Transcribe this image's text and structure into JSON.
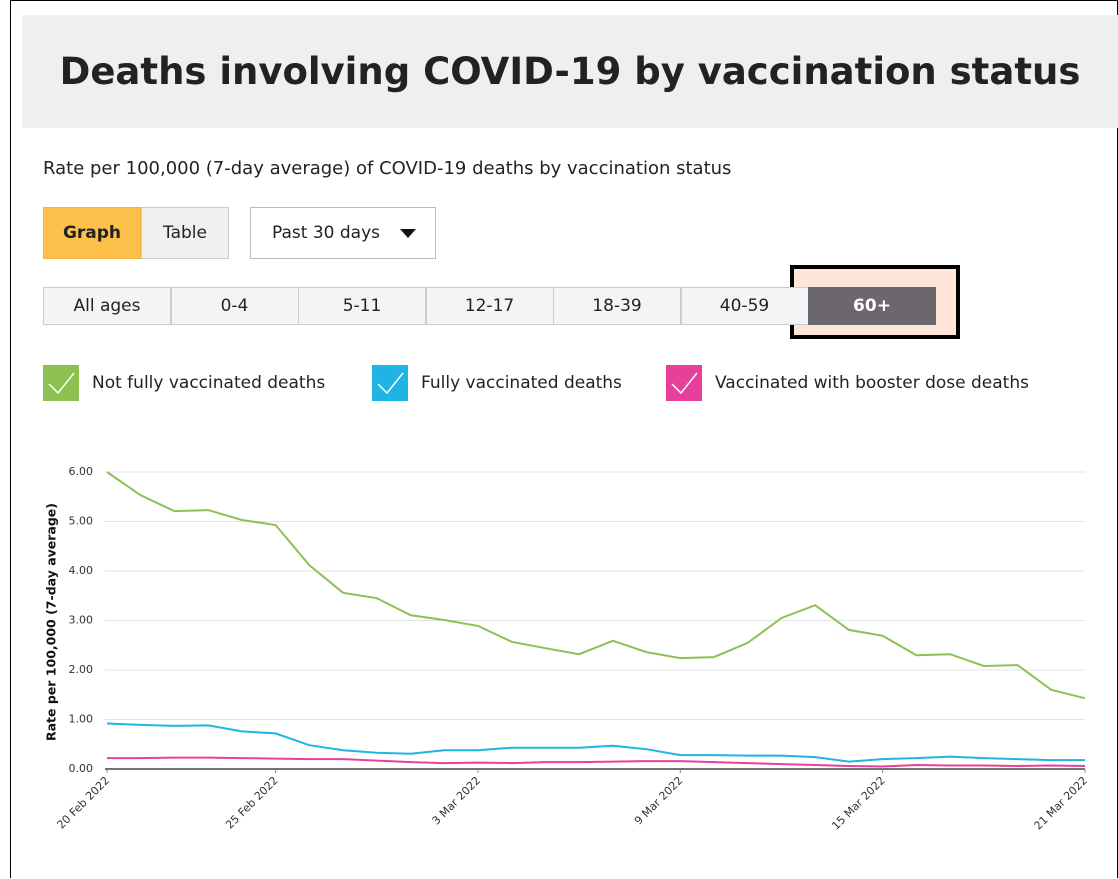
{
  "header": {
    "title": "Deaths involving COVID-19 by vaccination status"
  },
  "subtitle": "Rate per 100,000 (7-day average) of COVID-19 deaths by vaccination status",
  "view_buttons": [
    "Graph",
    "Table"
  ],
  "period_dropdown": "Past 30 days",
  "age_buttons": [
    "All ages",
    "0-4",
    "5-11",
    "12-17",
    "18-39",
    "40-59",
    "60+"
  ],
  "chart_data": {
    "type": "line",
    "ylabel": "Rate per 100,000 (7-day average)",
    "x": [
      "2022-02-20",
      "2022-02-21",
      "2022-02-22",
      "2022-02-23",
      "2022-02-24",
      "2022-02-25",
      "2022-02-26",
      "2022-02-27",
      "2022-02-28",
      "2022-03-01",
      "2022-03-02",
      "2022-03-03",
      "2022-03-04",
      "2022-03-05",
      "2022-03-06",
      "2022-03-07",
      "2022-03-08",
      "2022-03-09",
      "2022-03-10",
      "2022-03-11",
      "2022-03-12",
      "2022-03-13",
      "2022-03-14",
      "2022-03-15",
      "2022-03-16",
      "2022-03-17",
      "2022-03-18",
      "2022-03-19",
      "2022-03-20",
      "2022-03-21"
    ],
    "xlim": [
      "2022-02-20",
      "2022-03-21"
    ],
    "xticks": [
      {
        "value": "2022-02-20",
        "label": "20 Feb 2022"
      },
      {
        "value": "2022-02-25",
        "label": "25 Feb 2022"
      },
      {
        "value": "2022-03-03",
        "label": "3 Mar 2022"
      },
      {
        "value": "2022-03-09",
        "label": "9 Mar 2022"
      },
      {
        "value": "2022-03-15",
        "label": "15 Mar 2022"
      },
      {
        "value": "2022-03-21",
        "label": "21 Mar 2022"
      }
    ],
    "ylim": [
      0,
      6
    ],
    "yticks": [
      {
        "value": 0,
        "label": "0.00"
      },
      {
        "value": 1,
        "label": "1.00"
      },
      {
        "value": 2,
        "label": "2.00"
      },
      {
        "value": 3,
        "label": "3.00"
      },
      {
        "value": 4,
        "label": "4.00"
      },
      {
        "value": 5,
        "label": "5.00"
      },
      {
        "value": 6,
        "label": "6.00"
      }
    ],
    "grid": true,
    "series": [
      {
        "name": "Not fully vaccinated deaths",
        "color": "#8cc152",
        "values": [
          6.0,
          5.53,
          5.21,
          5.23,
          5.03,
          4.93,
          4.12,
          3.56,
          3.45,
          3.11,
          3.01,
          2.89,
          2.57,
          2.44,
          2.32,
          2.59,
          2.36,
          2.24,
          2.26,
          2.55,
          3.05,
          3.31,
          2.81,
          2.69,
          2.3,
          2.32,
          2.08,
          2.1,
          1.6,
          1.43
        ]
      },
      {
        "name": "Fully vaccinated deaths",
        "color": "#1fb4e4",
        "values": [
          0.92,
          0.89,
          0.87,
          0.88,
          0.76,
          0.72,
          0.48,
          0.38,
          0.33,
          0.31,
          0.38,
          0.38,
          0.43,
          0.43,
          0.43,
          0.47,
          0.4,
          0.28,
          0.28,
          0.27,
          0.27,
          0.24,
          0.15,
          0.2,
          0.22,
          0.25,
          0.22,
          0.2,
          0.18,
          0.18
        ]
      },
      {
        "name": "Vaccinated with booster dose deaths",
        "color": "#e8409a",
        "values": [
          0.22,
          0.22,
          0.23,
          0.23,
          0.22,
          0.21,
          0.2,
          0.2,
          0.17,
          0.14,
          0.12,
          0.13,
          0.12,
          0.14,
          0.14,
          0.15,
          0.16,
          0.16,
          0.14,
          0.12,
          0.1,
          0.08,
          0.06,
          0.05,
          0.08,
          0.07,
          0.07,
          0.06,
          0.07,
          0.06
        ]
      }
    ]
  }
}
